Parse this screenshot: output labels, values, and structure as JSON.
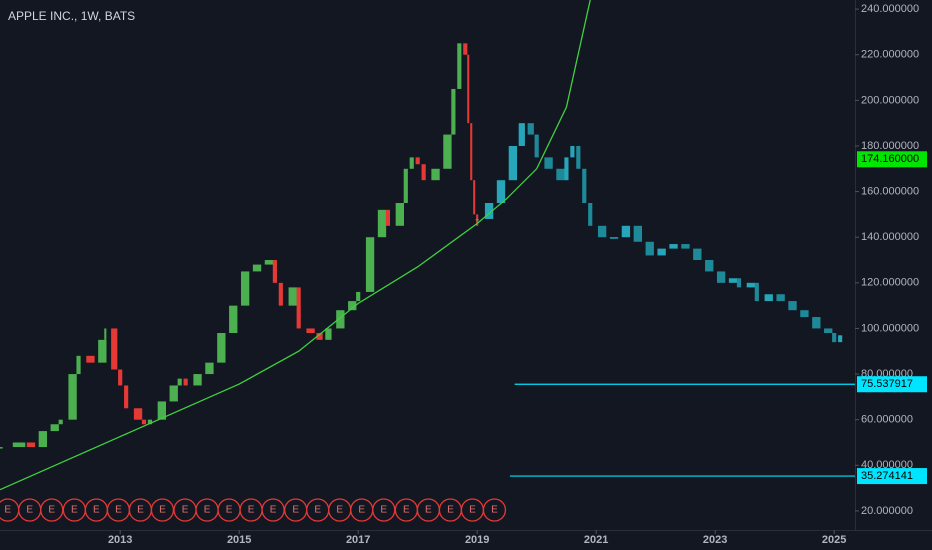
{
  "chart_data": {
    "type": "candlestick",
    "title": "APPLE INC., 1W, BATS",
    "xlim": [
      2010.98,
      2025.35
    ],
    "xticks": [
      2013,
      2015,
      2017,
      2019,
      2021,
      2023,
      2025
    ],
    "ylim": [
      14,
      244
    ],
    "yticks": [
      {
        "value": 20,
        "label": "20.000000"
      },
      {
        "value": 40,
        "label": "40.000000"
      },
      {
        "value": 60,
        "label": "60.000000"
      },
      {
        "value": 80,
        "label": "80.000000"
      },
      {
        "value": 100,
        "label": "100.000000"
      },
      {
        "value": 120,
        "label": "120.000000"
      },
      {
        "value": 140,
        "label": "140.000000"
      },
      {
        "value": 160,
        "label": "160.000000"
      },
      {
        "value": 180,
        "label": "180.000000"
      },
      {
        "value": 200,
        "label": "200.000000"
      },
      {
        "value": 220,
        "label": "220.000000"
      },
      {
        "value": 240,
        "label": "240.000000"
      }
    ],
    "series": [
      {
        "up_color": "#4caf50",
        "down_color": "#e53935",
        "x": [
          2011.0,
          2011.3,
          2011.5,
          2011.7,
          2011.9,
          2012.0,
          2012.2,
          2012.3,
          2012.5,
          2012.7,
          2012.75,
          2012.9,
          2013.0,
          2013.1,
          2013.3,
          2013.4,
          2013.5,
          2013.7,
          2013.9,
          2014.0,
          2014.1,
          2014.3,
          2014.5,
          2014.7,
          2014.9,
          2015.1,
          2015.3,
          2015.5,
          2015.6,
          2015.7,
          2015.9,
          2016.0,
          2016.2,
          2016.35,
          2016.5,
          2016.7,
          2016.9,
          2017.0,
          2017.2,
          2017.4,
          2017.5,
          2017.7,
          2017.8,
          2017.9,
          2018.0,
          2018.1,
          2018.3,
          2018.5,
          2018.6,
          2018.7,
          2018.8,
          2018.85,
          2018.9,
          2018.95,
          2019.0
        ],
        "values": [
          48,
          50,
          48,
          55,
          58,
          60,
          80,
          88,
          85,
          95,
          100,
          82,
          75,
          65,
          60,
          58,
          60,
          68,
          75,
          78,
          75,
          80,
          85,
          98,
          110,
          125,
          128,
          130,
          120,
          110,
          118,
          100,
          98,
          95,
          100,
          108,
          112,
          116,
          140,
          152,
          145,
          155,
          170,
          175,
          172,
          165,
          170,
          185,
          205,
          225,
          220,
          190,
          165,
          150,
          145
        ]
      },
      {
        "up_color": "#26a6b8",
        "down_color": "#1e8a99",
        "x": [
          2019.0,
          2019.2,
          2019.4,
          2019.6,
          2019.75,
          2019.9,
          2020.0,
          2020.2,
          2020.4,
          2020.5,
          2020.6,
          2020.7,
          2020.8,
          2020.9,
          2021.1,
          2021.3,
          2021.5,
          2021.7,
          2021.9,
          2022.1,
          2022.3,
          2022.5,
          2022.7,
          2022.9,
          2023.1,
          2023.3,
          2023.4,
          2023.6,
          2023.7,
          2023.9,
          2024.1,
          2024.3,
          2024.5,
          2024.7,
          2024.9,
          2025.0,
          2025.1
        ],
        "values": [
          148,
          155,
          165,
          180,
          190,
          185,
          175,
          170,
          165,
          175,
          180,
          170,
          155,
          145,
          140,
          140,
          145,
          138,
          132,
          135,
          137,
          135,
          130,
          125,
          120,
          122,
          118,
          120,
          112,
          115,
          112,
          108,
          105,
          100,
          98,
          94,
          97
        ]
      }
    ],
    "curve": {
      "color": "#3fd13f",
      "x": [
        2010.98,
        2013,
        2015,
        2016,
        2017,
        2018,
        2019,
        2019.5,
        2020,
        2020.5,
        2020.9
      ],
      "values": [
        29.3,
        52.6,
        75.6,
        90,
        111,
        127,
        146,
        157,
        170,
        197,
        244
      ]
    },
    "levels": [
      {
        "value": 75.537917,
        "label": "75.537917",
        "x_start": 2019.63,
        "color": "#00e5ff"
      },
      {
        "value": 35.274141,
        "label": "35.274141",
        "x_start": 2019.55,
        "color": "#00e5ff"
      }
    ],
    "last_price": {
      "value": 174.16,
      "label": "174.160000",
      "color": "#00e600"
    },
    "earnings": {
      "label": "E",
      "color": "#e53935",
      "x": [
        2011.11,
        2011.48,
        2011.85,
        2012.23,
        2012.6,
        2012.97,
        2013.34,
        2013.71,
        2014.09,
        2014.46,
        2014.83,
        2015.2,
        2015.57,
        2015.95,
        2016.32,
        2016.69,
        2017.06,
        2017.43,
        2017.81,
        2018.18,
        2018.55,
        2018.92,
        2019.29
      ]
    }
  }
}
